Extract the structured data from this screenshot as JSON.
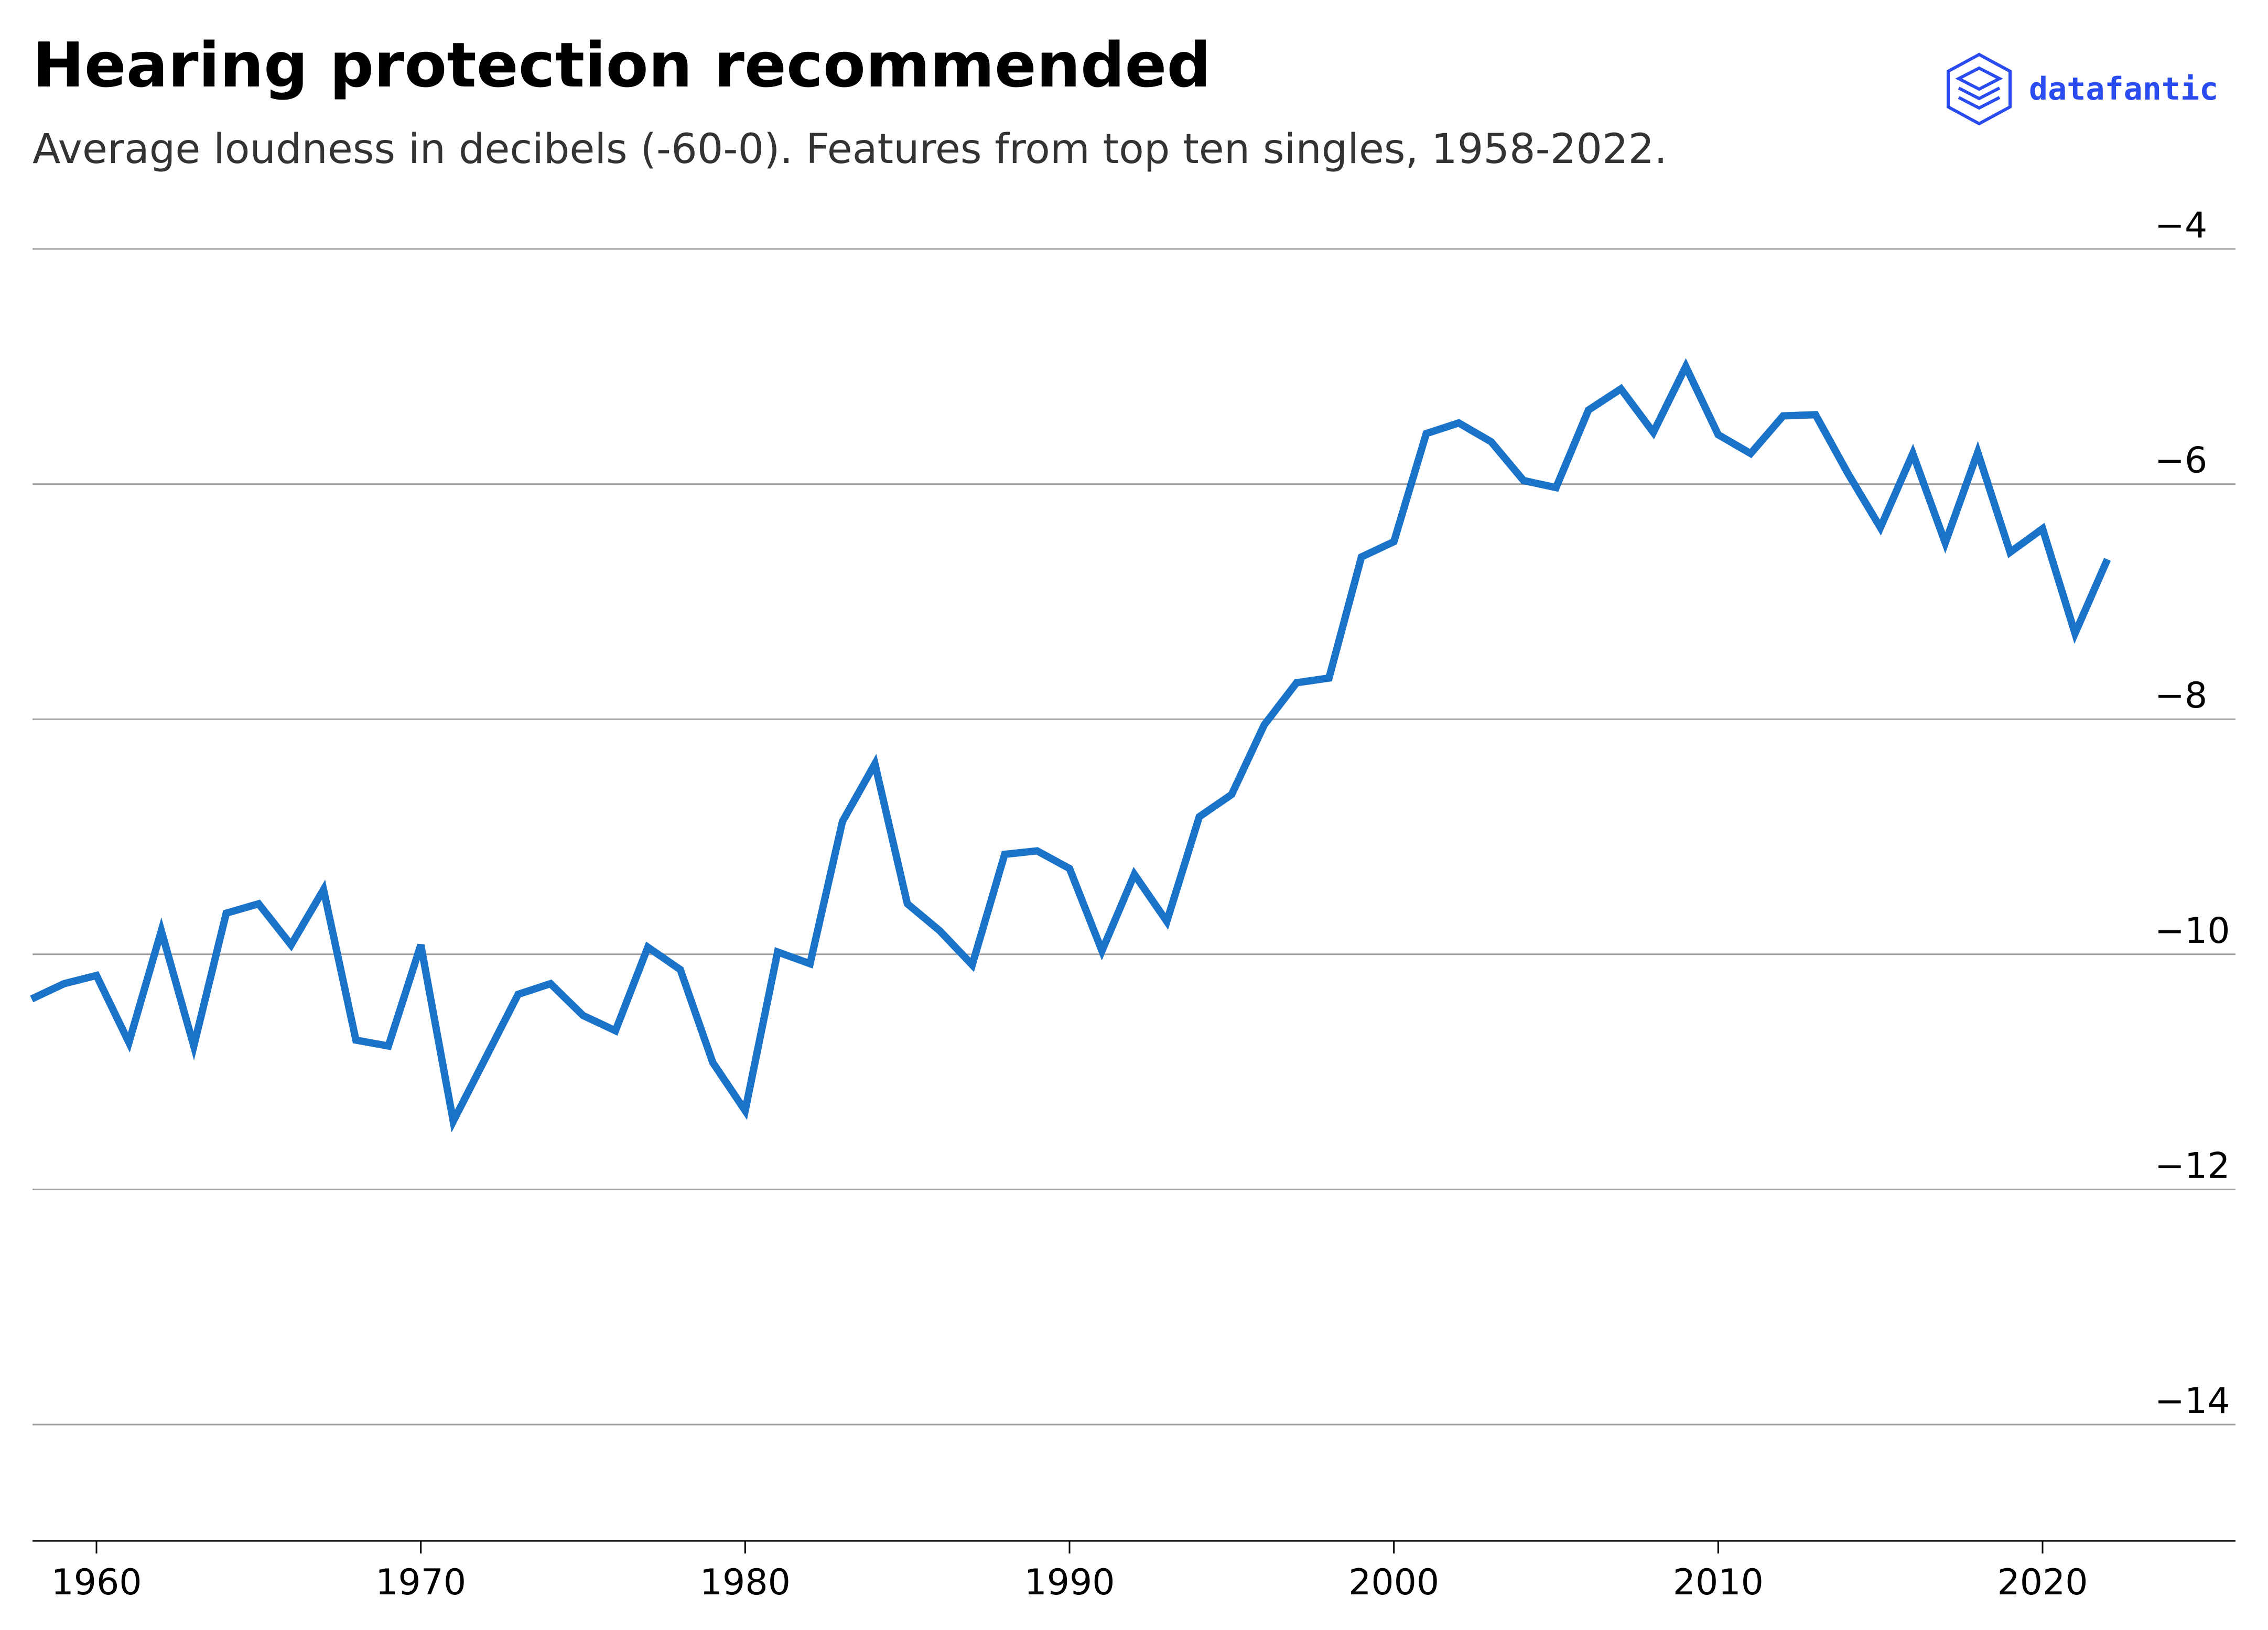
{
  "header": {
    "title": "Hearing protection recommended",
    "subtitle": "Average loudness in decibels (-60-0). Features from top ten singles, 1958-2022.",
    "brand_name": "datafantic",
    "brand_icon": "stacked-layers-icon",
    "brand_color": "#2a4bf0"
  },
  "chart_data": {
    "type": "line",
    "title": "Hearing protection recommended",
    "subtitle": "Average loudness in decibels (-60-0). Features from top ten singles, 1958-2022.",
    "xlabel": "",
    "ylabel": "",
    "xlim": [
      1958,
      2026
    ],
    "ylim": [
      -15,
      -4
    ],
    "x_ticks": [
      1960,
      1970,
      1980,
      1990,
      2000,
      2010,
      2020
    ],
    "y_ticks": [
      -4,
      -6,
      -8,
      -10,
      -12,
      -14
    ],
    "y_tick_labels": [
      "−4",
      "−6",
      "−8",
      "−10",
      "−12",
      "−14"
    ],
    "y_axis_side": "right",
    "grid": "horizontal",
    "line_color": "#1a73c9",
    "x": [
      1958,
      1959,
      1960,
      1961,
      1962,
      1963,
      1964,
      1965,
      1966,
      1967,
      1968,
      1969,
      1970,
      1971,
      1972,
      1973,
      1974,
      1975,
      1976,
      1977,
      1978,
      1979,
      1980,
      1981,
      1982,
      1983,
      1984,
      1985,
      1986,
      1987,
      1988,
      1989,
      1990,
      1991,
      1992,
      1993,
      1994,
      1995,
      1996,
      1997,
      1998,
      1999,
      2000,
      2001,
      2002,
      2003,
      2004,
      2005,
      2006,
      2007,
      2008,
      2009,
      2010,
      2011,
      2012,
      2013,
      2014,
      2015,
      2016,
      2017,
      2018,
      2019,
      2020,
      2021,
      2022
    ],
    "series": [
      {
        "values": [
          -10.38,
          -10.25,
          -10.18,
          -10.75,
          -9.8,
          -10.78,
          -9.65,
          -9.57,
          -9.92,
          -9.45,
          -10.73,
          -10.78,
          -9.92,
          -11.42,
          -10.88,
          -10.34,
          -10.25,
          -10.52,
          -10.65,
          -9.94,
          -10.13,
          -10.92,
          -11.33,
          -9.98,
          -10.08,
          -8.87,
          -8.38,
          -9.57,
          -9.8,
          -10.09,
          -9.15,
          -9.12,
          -9.27,
          -9.97,
          -9.32,
          -9.72,
          -8.83,
          -8.64,
          -8.05,
          -7.69,
          -7.65,
          -6.62,
          -6.49,
          -5.57,
          -5.48,
          -5.64,
          -5.97,
          -6.03,
          -5.37,
          -5.19,
          -5.56,
          -5.0,
          -5.58,
          -5.74,
          -5.42,
          -5.41,
          -5.91,
          -6.37,
          -5.74,
          -6.5,
          -5.73,
          -6.58,
          -6.38,
          -7.27,
          -6.64
        ]
      }
    ]
  }
}
